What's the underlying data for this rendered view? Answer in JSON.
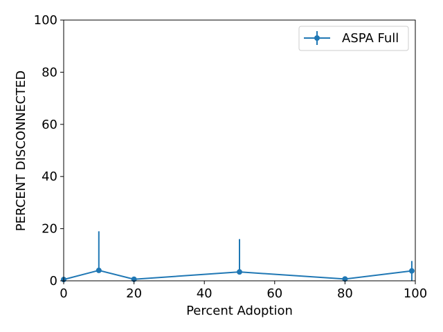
{
  "chart_data": {
    "type": "line",
    "title": "",
    "xlabel": "Percent Adoption",
    "ylabel": "PERCENT DISCONNECTED",
    "xlim": [
      0,
      100
    ],
    "ylim": [
      0,
      100
    ],
    "xticks": [
      0,
      20,
      40,
      60,
      80,
      100
    ],
    "yticks": [
      0,
      20,
      40,
      60,
      80,
      100
    ],
    "grid": false,
    "legend_position": "top-right",
    "series": [
      {
        "name": "ASPA Full",
        "color": "#1f77b4",
        "marker": "circle",
        "x": [
          0,
          10,
          20,
          50,
          80,
          99
        ],
        "y": [
          0.5,
          4.0,
          0.6,
          3.4,
          0.7,
          3.8
        ],
        "yerr_upper": [
          0.5,
          15.0,
          0.6,
          12.6,
          0.7,
          3.8
        ],
        "yerr_lower": [
          0.5,
          0.0,
          0.6,
          0.0,
          0.7,
          3.8
        ]
      }
    ]
  }
}
